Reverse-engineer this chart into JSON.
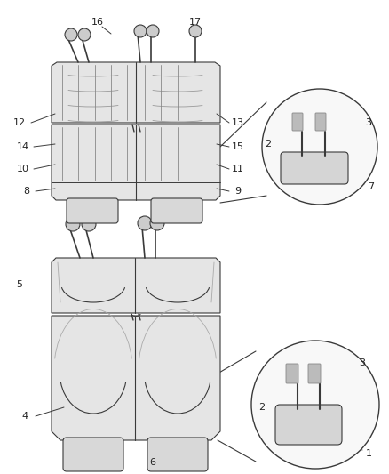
{
  "bg_color": "#ffffff",
  "line_color": "#3a3a3a",
  "seat_fill": "#e8e8e8",
  "seat_dark": "#d0d0d0",
  "fig_width": 4.38,
  "fig_height": 5.33,
  "dpi": 100
}
